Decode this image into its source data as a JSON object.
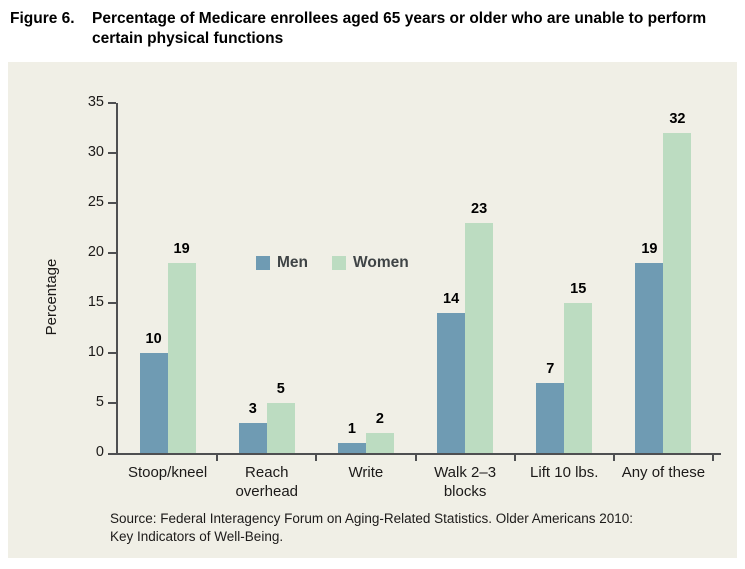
{
  "title": {
    "figure_label": "Figure 6.",
    "text": "Percentage of Medicare enrollees aged 65 years or older who are unable to perform certain physical functions"
  },
  "source": {
    "line1": "Source: Federal Interagency Forum on Aging-Related Statistics. Older Americans 2010:",
    "line2": "Key Indicators of Well-Being."
  },
  "colors": {
    "panel_background": "#f0efe6",
    "axis": "#4e4f51",
    "men_bar": "#6f9bb3",
    "women_bar": "#bcdcc1"
  },
  "chart_data": {
    "type": "bar",
    "categories": [
      "Stoop/kneel",
      "Reach\noverhead",
      "Write",
      "Walk 2–3\nblocks",
      "Lift 10 lbs.",
      "Any of these"
    ],
    "series": [
      {
        "name": "Men",
        "color": "#6f9bb3",
        "values": [
          10,
          3,
          1,
          14,
          7,
          19
        ]
      },
      {
        "name": "Women",
        "color": "#bcdcc1",
        "values": [
          19,
          5,
          2,
          23,
          15,
          32
        ]
      }
    ],
    "title": "Percentage of Medicare enrollees aged 65 years or older who are unable to perform certain physical functions",
    "xlabel": "",
    "ylabel": "Percentage",
    "ylim": [
      0,
      35
    ],
    "ytick_step": 5,
    "grid": false,
    "legend_position": "inside-upper-middle-left",
    "value_labels": true
  }
}
